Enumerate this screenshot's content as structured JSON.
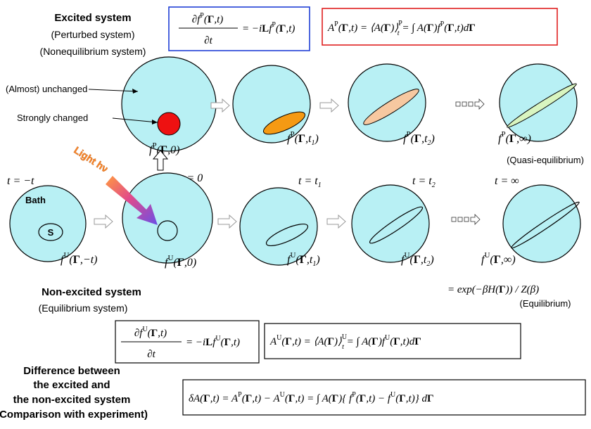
{
  "headings": {
    "excited_title": "Excited  system",
    "excited_sub1": "(Perturbed system)",
    "excited_sub2": "(Nonequilibrium system)",
    "nonexcited_title": "Non-excited system",
    "nonexcited_sub": "(Equilibrium system)",
    "diff_line1": "Difference between",
    "diff_line2": "the excited and",
    "diff_line3": "the non-excited system",
    "diff_line4": "(Comparison with experiment)"
  },
  "annotations": {
    "unchanged": "(Almost) unchanged",
    "strongly_changed": "Strongly changed",
    "bath": "Bath",
    "system": "S",
    "light": "Light hν",
    "quasi_eq": "(Quasi-equilibrium)",
    "equilibrium": "(Equilibrium)"
  },
  "equations": {
    "eq_p_lhs_num": "∂f P(Γ,t)",
    "eq_p_lhs_den": "∂t",
    "eq_p_rhs": "= −iLf P(Γ,t)",
    "eq_ap": "A P(Γ,t) = ⟨A(Γ)⟩ P t = ∫ A(Γ) f P(Γ,t)dΓ",
    "eq_u_lhs_num": "∂f U(Γ,t)",
    "eq_u_lhs_den": "∂t",
    "eq_u_rhs": "= −iLf U(Γ,t)",
    "eq_au": "A U(Γ,t) = ⟨A(Γ)⟩ U t = ∫ A(Γ) f U(Γ,t)dΓ",
    "eq_diff": "δA(Γ,t) = A P(Γ,t) − A U(Γ,t) = ∫ A(Γ){ f P(Γ,t) − f U(Γ,t)} dΓ",
    "eq_eq": "= exp(−βH(Γ)) / Z(β)"
  },
  "top_labels": [
    "f P(Γ,0)",
    "f P(Γ,t1)",
    "f P(Γ,t2)",
    "f P(Γ,∞)"
  ],
  "bottom_labels": [
    "f U(Γ,−t)",
    "f U(Γ,0)",
    "f U(Γ,t1)",
    "f U(Γ,t2)",
    "f U(Γ,∞)"
  ],
  "time_labels": [
    "t = −t",
    "t = 0",
    "t = t1",
    "t = t2",
    "t = ∞"
  ],
  "colors": {
    "circle_fill": "#b8f0f4",
    "red_dot": "#ee1111",
    "orange": "#f59a13",
    "peach": "#f7c8a0",
    "light_green": "#d9f5c0",
    "box_blue": "#1f3fd6",
    "box_red": "#e02020",
    "arrow_purple": "#7a4fe0"
  }
}
